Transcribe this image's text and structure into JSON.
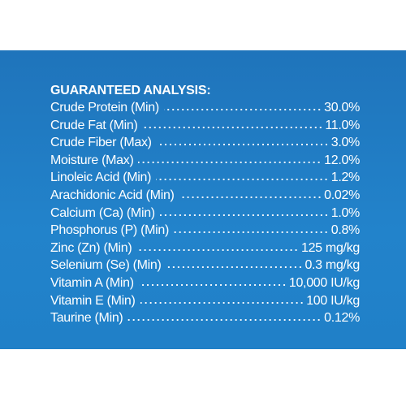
{
  "header": {
    "title": "GUARANTEED ANALYSIS:"
  },
  "rows": [
    {
      "label": "Crude Protein (Min)",
      "value": "30.0%"
    },
    {
      "label": "Crude Fat (Min)",
      "value": "11.0%"
    },
    {
      "label": "Crude Fiber (Max)",
      "value": "3.0%"
    },
    {
      "label": "Moisture (Max)",
      "value": "12.0%"
    },
    {
      "label": "Linoleic Acid (Min)",
      "value": "1.2%"
    },
    {
      "label": "Arachidonic Acid (Min)",
      "value": "0.02%"
    },
    {
      "label": "Calcium (Ca) (Min)",
      "value": "1.0%"
    },
    {
      "label": "Phosphorus (P) (Min)",
      "value": "0.8%"
    },
    {
      "label": "Zinc (Zn) (Min)",
      "value": "125 mg/kg"
    },
    {
      "label": "Selenium (Se) (Min)",
      "value": "0.3 mg/kg"
    },
    {
      "label": "Vitamin A (Min)",
      "value": "10,000 IU/kg"
    },
    {
      "label": "Vitamin E (Min)",
      "value": "100 IU/kg"
    },
    {
      "label": "Taurine (Min)",
      "value": "0.12%"
    }
  ]
}
